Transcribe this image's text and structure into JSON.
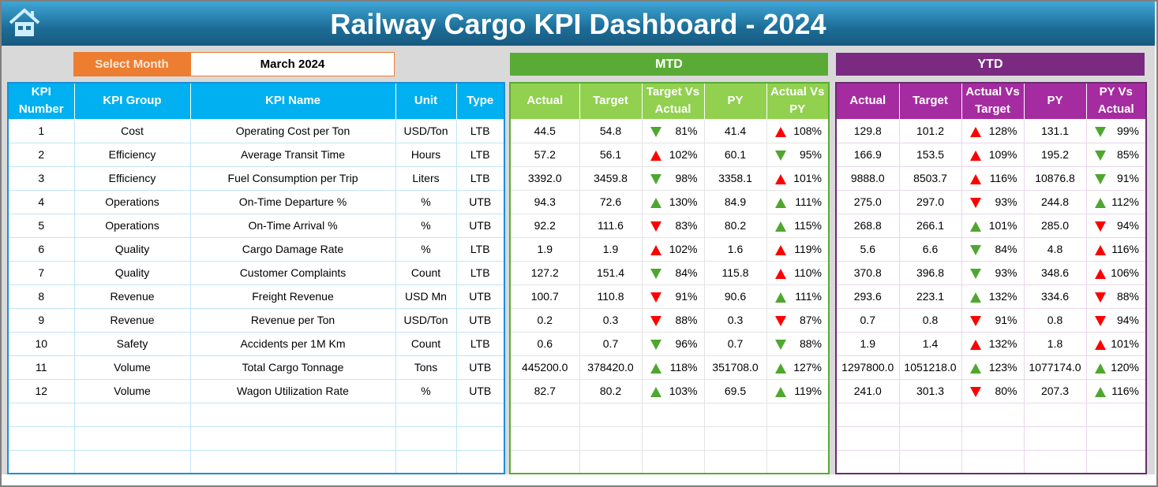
{
  "title": "Railway Cargo KPI Dashboard - 2024",
  "select_month": {
    "label": "Select Month",
    "value": "March 2024"
  },
  "mtd_label": "MTD",
  "ytd_label": "YTD",
  "colors": {
    "up_good": "#4ea72e",
    "bad": "#ff0000",
    "header_blue": "#00b0f0",
    "mtd_green": "#92d050",
    "ytd_purple": "#a52ca0",
    "select_orange": "#ed7d31"
  },
  "kpi_headers": [
    "KPI Number",
    "KPI Group",
    "KPI Name",
    "Unit",
    "Type"
  ],
  "mtd_headers": [
    "Actual",
    "Target",
    "Target Vs Actual",
    "PY",
    "Actual Vs PY"
  ],
  "ytd_headers": [
    "Actual",
    "Target",
    "Actual Vs Target",
    "PY",
    "PY Vs Actual"
  ],
  "rows": [
    {
      "num": "1",
      "group": "Cost",
      "name": "Operating Cost per Ton",
      "unit": "USD/Ton",
      "type": "LTB",
      "mtd": [
        "44.5",
        "54.8",
        "81%",
        "41.4",
        "108%"
      ],
      "ytd": [
        "129.8",
        "101.2",
        "128%",
        "131.1",
        "99%"
      ]
    },
    {
      "num": "2",
      "group": "Efficiency",
      "name": "Average Transit Time",
      "unit": "Hours",
      "type": "LTB",
      "mtd": [
        "57.2",
        "56.1",
        "102%",
        "60.1",
        "95%"
      ],
      "ytd": [
        "166.9",
        "153.5",
        "109%",
        "195.2",
        "85%"
      ]
    },
    {
      "num": "3",
      "group": "Efficiency",
      "name": "Fuel Consumption per Trip",
      "unit": "Liters",
      "type": "LTB",
      "mtd": [
        "3392.0",
        "3459.8",
        "98%",
        "3358.1",
        "101%"
      ],
      "ytd": [
        "9888.0",
        "8503.7",
        "116%",
        "10876.8",
        "91%"
      ]
    },
    {
      "num": "4",
      "group": "Operations",
      "name": "On-Time Departure %",
      "unit": "%",
      "type": "UTB",
      "mtd": [
        "94.3",
        "72.6",
        "130%",
        "84.9",
        "111%"
      ],
      "ytd": [
        "275.0",
        "297.0",
        "93%",
        "244.8",
        "112%"
      ]
    },
    {
      "num": "5",
      "group": "Operations",
      "name": "On-Time Arrival %",
      "unit": "%",
      "type": "UTB",
      "mtd": [
        "92.2",
        "111.6",
        "83%",
        "80.2",
        "115%"
      ],
      "ytd": [
        "268.8",
        "266.1",
        "101%",
        "285.0",
        "94%"
      ]
    },
    {
      "num": "6",
      "group": "Quality",
      "name": "Cargo Damage Rate",
      "unit": "%",
      "type": "LTB",
      "mtd": [
        "1.9",
        "1.9",
        "102%",
        "1.6",
        "119%"
      ],
      "ytd": [
        "5.6",
        "6.6",
        "84%",
        "4.8",
        "116%"
      ]
    },
    {
      "num": "7",
      "group": "Quality",
      "name": "Customer Complaints",
      "unit": "Count",
      "type": "LTB",
      "mtd": [
        "127.2",
        "151.4",
        "84%",
        "115.8",
        "110%"
      ],
      "ytd": [
        "370.8",
        "396.8",
        "93%",
        "348.6",
        "106%"
      ]
    },
    {
      "num": "8",
      "group": "Revenue",
      "name": "Freight Revenue",
      "unit": "USD Mn",
      "type": "UTB",
      "mtd": [
        "100.7",
        "110.8",
        "91%",
        "90.6",
        "111%"
      ],
      "ytd": [
        "293.6",
        "223.1",
        "132%",
        "334.6",
        "88%"
      ]
    },
    {
      "num": "9",
      "group": "Revenue",
      "name": "Revenue per Ton",
      "unit": "USD/Ton",
      "type": "UTB",
      "mtd": [
        "0.2",
        "0.3",
        "88%",
        "0.3",
        "87%"
      ],
      "ytd": [
        "0.7",
        "0.8",
        "91%",
        "0.8",
        "94%"
      ]
    },
    {
      "num": "10",
      "group": "Safety",
      "name": "Accidents per 1M Km",
      "unit": "Count",
      "type": "LTB",
      "mtd": [
        "0.6",
        "0.7",
        "96%",
        "0.7",
        "88%"
      ],
      "ytd": [
        "1.9",
        "1.4",
        "132%",
        "1.8",
        "101%"
      ]
    },
    {
      "num": "11",
      "group": "Volume",
      "name": "Total Cargo Tonnage",
      "unit": "Tons",
      "type": "UTB",
      "mtd": [
        "445200.0",
        "378420.0",
        "118%",
        "351708.0",
        "127%"
      ],
      "ytd": [
        "1297800.0",
        "1051218.0",
        "123%",
        "1077174.0",
        "120%"
      ]
    },
    {
      "num": "12",
      "group": "Volume",
      "name": "Wagon Utilization Rate",
      "unit": "%",
      "type": "UTB",
      "mtd": [
        "82.7",
        "80.2",
        "103%",
        "69.5",
        "119%"
      ],
      "ytd": [
        "241.0",
        "301.3",
        "80%",
        "207.3",
        "116%"
      ]
    }
  ]
}
